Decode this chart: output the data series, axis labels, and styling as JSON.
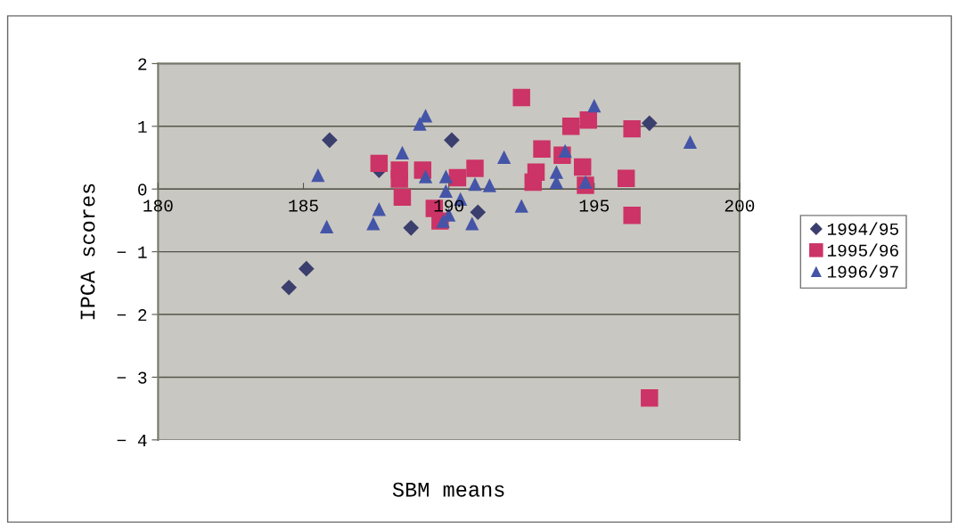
{
  "chart_data": {
    "type": "scatter",
    "xlabel": "SBM means",
    "ylabel": "IPCA scores",
    "xlim": [
      180,
      200
    ],
    "xticks": [
      180,
      185,
      190,
      195,
      200
    ],
    "ylim": [
      -4,
      2
    ],
    "yticks": [
      -4,
      -3,
      -2,
      -1,
      0,
      1,
      2
    ],
    "grid": "y",
    "legend": "right",
    "series": [
      {
        "name": "1994/95",
        "color": "#3b3f6e",
        "marker": "diamond",
        "x": [
          184.5,
          185.1,
          185.9,
          188.7,
          187.6,
          190.1,
          191.0,
          196.9
        ],
        "values": [
          -1.57,
          -1.27,
          0.78,
          -0.62,
          0.3,
          0.78,
          -0.37,
          1.05
        ]
      },
      {
        "name": "1995/96",
        "color": "#cc3366",
        "marker": "square",
        "x": [
          187.6,
          188.3,
          188.3,
          188.4,
          189.1,
          189.5,
          189.7,
          192.5,
          194.2,
          194.8,
          196.3,
          193.2,
          193.9,
          194.6,
          193.0,
          192.9,
          194.7,
          196.1,
          196.3,
          190.9,
          190.3,
          196.9
        ],
        "values": [
          0.41,
          0.3,
          0.16,
          -0.13,
          0.3,
          -0.31,
          -0.51,
          1.46,
          1.0,
          1.1,
          0.96,
          0.64,
          0.54,
          0.35,
          0.27,
          0.11,
          0.06,
          0.17,
          -0.42,
          0.33,
          0.18,
          -3.33
        ]
      },
      {
        "name": "1996/97",
        "color": "#4455a8",
        "marker": "triangle",
        "x": [
          185.5,
          185.8,
          187.4,
          187.6,
          188.4,
          189.0,
          189.2,
          189.2,
          189.9,
          189.9,
          189.8,
          190.4,
          190.8,
          190.9,
          191.4,
          191.9,
          192.5,
          195.0,
          194.0,
          193.7,
          193.7,
          194.7,
          198.3,
          190.0
        ],
        "values": [
          0.22,
          -0.6,
          -0.55,
          -0.32,
          0.58,
          1.04,
          1.17,
          0.2,
          0.2,
          -0.03,
          -0.51,
          -0.16,
          -0.55,
          0.08,
          0.06,
          0.51,
          -0.27,
          1.33,
          0.61,
          0.27,
          0.11,
          0.11,
          0.75,
          -0.41
        ]
      }
    ]
  }
}
